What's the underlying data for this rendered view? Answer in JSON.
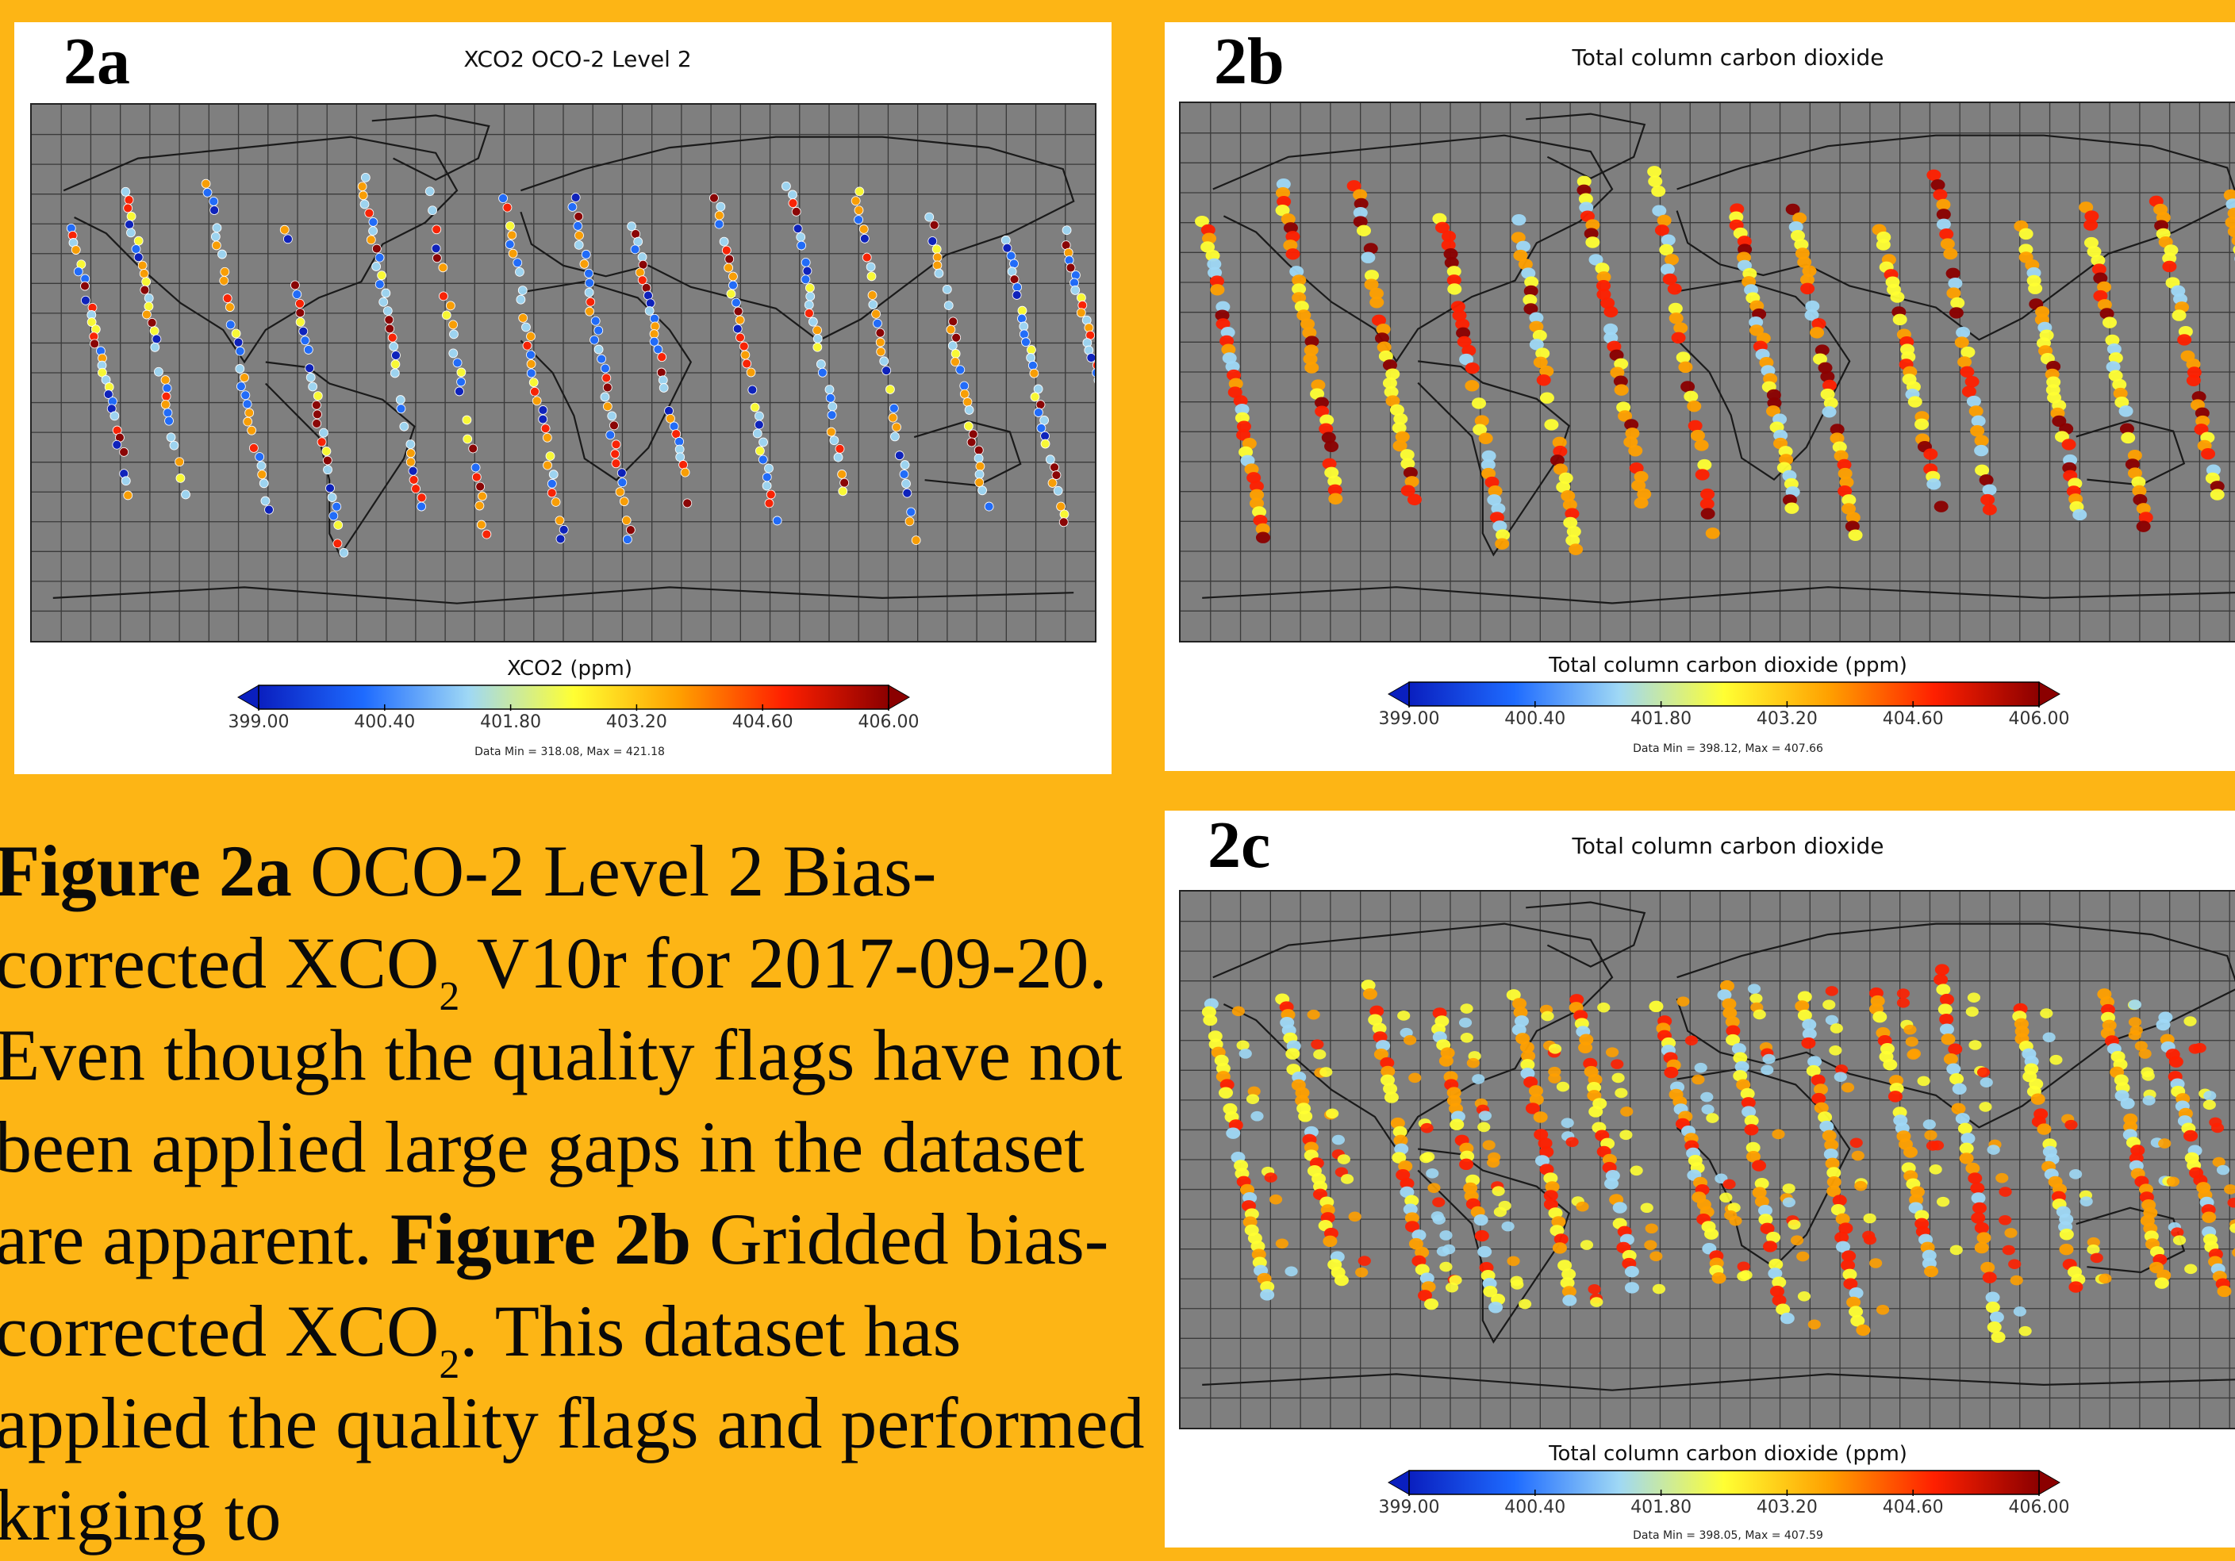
{
  "panels": {
    "a": {
      "label": "2a",
      "title": "XCO2 OCO-2 Level 2",
      "colorbar_title": "XCO2 (ppm)",
      "data_minmax": "Data Min = 318.08, Max = 421.18"
    },
    "b": {
      "label": "2b",
      "title": "Total column carbon dioxide",
      "colorbar_title": "Total column carbon dioxide (ppm)",
      "data_minmax": "Data Min = 398.12, Max = 407.66"
    },
    "c": {
      "label": "2c",
      "title": "Total column carbon dioxide",
      "colorbar_title": "Total column carbon dioxide (ppm)",
      "data_minmax": "Data Min = 398.05, Max = 407.59"
    }
  },
  "colorbar_ticks": [
    "399.00",
    "400.40",
    "401.80",
    "403.20",
    "404.60",
    "406.00"
  ],
  "colors": {
    "background": "#FDB515",
    "map_ocean": "#7f7f7f",
    "colorscale": [
      "#0a1fbf",
      "#1e6bff",
      "#9fd8f5",
      "#ffff33",
      "#ffa000",
      "#ff2000",
      "#8b0000"
    ]
  },
  "caption": {
    "fig2a_label": "Figure 2a",
    "fig2a_text_1": " OCO-2 Level 2 Bias-corrected XCO",
    "fig2a_sub": "2",
    "fig2a_text_2": " V10r for 2017-09-20. Even though the quality flags have not been applied large gaps in the dataset are apparent. ",
    "fig2b_label": "Figure 2b",
    "fig2b_text_1": " Gridded bias-corrected XCO",
    "fig2b_sub": "2",
    "fig2b_text_2": ". This dataset has applied the quality flags and performed kriging to"
  }
}
